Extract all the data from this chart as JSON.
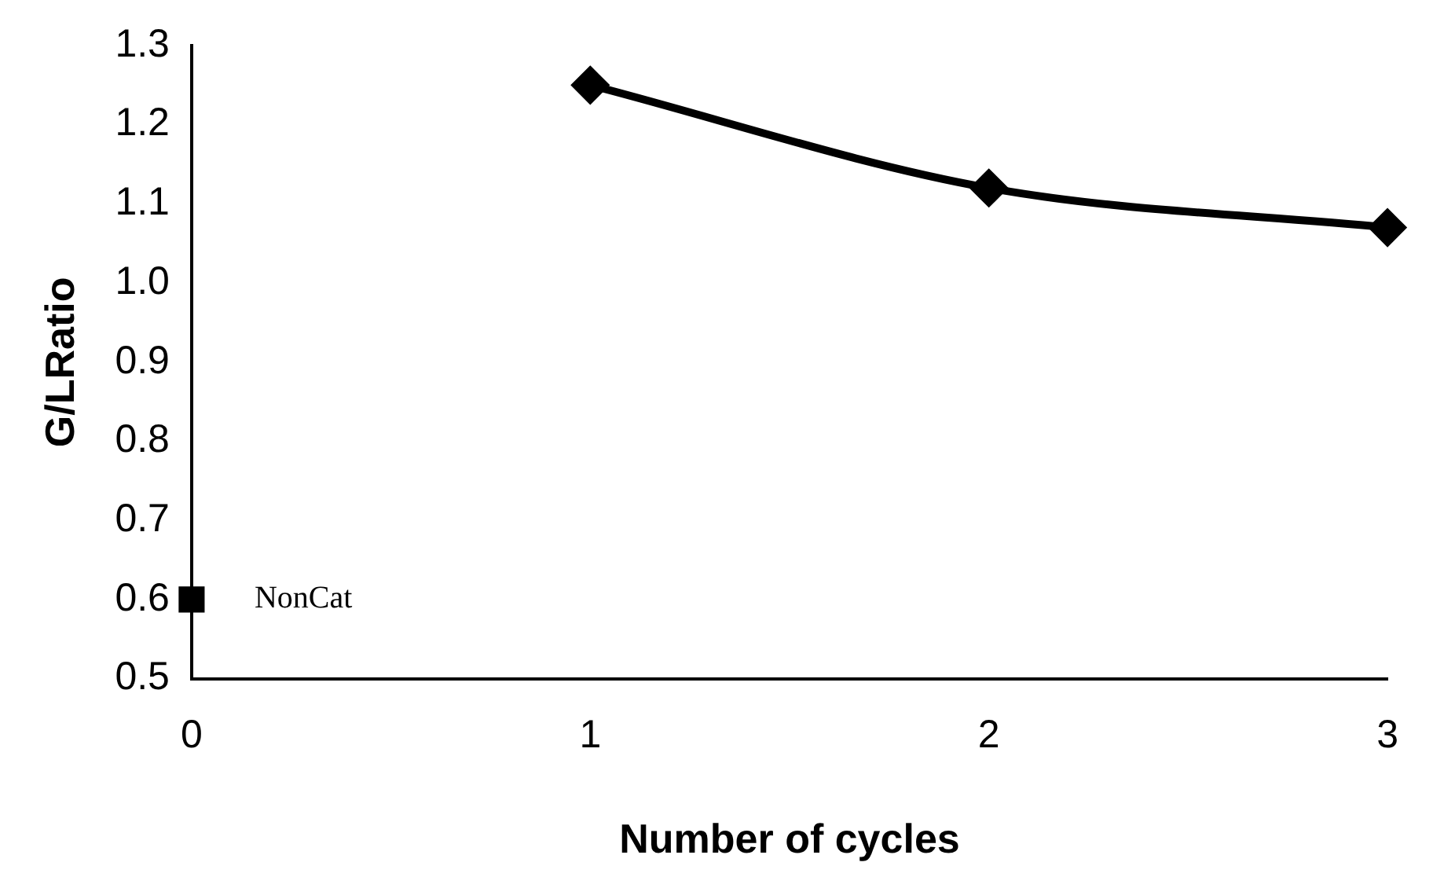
{
  "chart_data": {
    "type": "line",
    "xlabel": "Number of cycles",
    "ylabel": "G/LRatio",
    "xlim": [
      0,
      3
    ],
    "xticks": [
      0,
      1,
      2,
      3
    ],
    "ylim": [
      0.5,
      1.3
    ],
    "yticks": [
      0.5,
      0.6,
      0.7,
      0.8,
      0.9,
      {
        "value": 1,
        "label": "1.0"
      },
      1.1,
      1.2,
      1.3
    ],
    "grid": false,
    "legend": false,
    "series": [
      {
        "color": "#000000",
        "marker": "diamond",
        "x": [
          1,
          2,
          3
        ],
        "values": [
          1.25,
          1.12,
          1.07
        ]
      },
      {
        "type": "scatter",
        "name": "NonCat",
        "color": "#000000",
        "marker": "square",
        "x": [
          0
        ],
        "values": [
          0.6
        ]
      }
    ]
  }
}
